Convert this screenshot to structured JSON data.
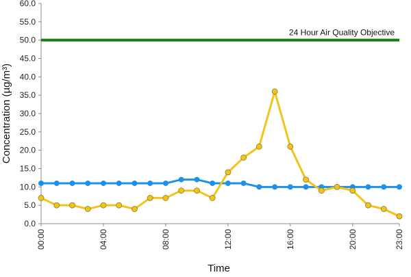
{
  "chart_data": {
    "type": "line",
    "xlabel": "Time",
    "ylabel": "Concentration (µg/m³)",
    "ylim": [
      0,
      60
    ],
    "y_ticks": [
      "0.0",
      "5.0",
      "10.0",
      "15.0",
      "20.0",
      "25.0",
      "30.0",
      "35.0",
      "40.0",
      "45.0",
      "50.0",
      "55.0",
      "60.0"
    ],
    "x_tick_labels": [
      "00:00",
      "04:00",
      "08:00",
      "12:00",
      "16:00",
      "20:00",
      "23:00"
    ],
    "x_tick_hours": [
      0,
      4,
      8,
      12,
      16,
      20,
      23
    ],
    "x_hours": [
      0,
      1,
      2,
      3,
      4,
      5,
      6,
      7,
      8,
      9,
      10,
      11,
      12,
      13,
      14,
      15,
      16,
      17,
      18,
      19,
      20,
      21,
      22,
      23
    ],
    "grid": false,
    "series": [
      {
        "color": "#1e90e8",
        "values": [
          11,
          11,
          11,
          11,
          11,
          11,
          11,
          11,
          11,
          12,
          12,
          11,
          11,
          11,
          10,
          10,
          10,
          10,
          10,
          10,
          10,
          10,
          10,
          10
        ]
      },
      {
        "color": "#f0c419",
        "values": [
          7,
          5,
          5,
          4,
          5,
          5,
          4,
          7,
          7,
          9,
          9,
          7,
          14,
          18,
          21,
          36,
          21,
          12,
          9,
          10,
          9,
          5,
          4,
          2
        ]
      }
    ],
    "objective": {
      "label": "24 Hour Air Quality Objective",
      "value": 50,
      "color": "#1a7a1a"
    }
  }
}
